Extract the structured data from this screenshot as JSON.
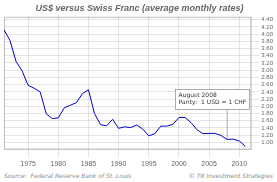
{
  "chart_data": {
    "type": "line",
    "title": "US$ versus Swiss Franc (average monthly rates)",
    "x": [
      1971,
      1972,
      1973,
      1974,
      1975,
      1976,
      1977,
      1978,
      1979,
      1980,
      1981,
      1982,
      1983,
      1984,
      1985,
      1986,
      1987,
      1988,
      1989,
      1990,
      1991,
      1992,
      1993,
      1994,
      1995,
      1996,
      1997,
      1998,
      1999,
      2000,
      2001,
      2002,
      2003,
      2004,
      2005,
      2006,
      2007,
      2008,
      2009,
      2010,
      2011
    ],
    "values": [
      4.12,
      3.82,
      3.24,
      2.98,
      2.58,
      2.5,
      2.4,
      1.79,
      1.66,
      1.68,
      1.96,
      2.03,
      2.1,
      2.35,
      2.46,
      1.8,
      1.49,
      1.46,
      1.64,
      1.39,
      1.43,
      1.41,
      1.48,
      1.37,
      1.18,
      1.24,
      1.45,
      1.45,
      1.5,
      1.69,
      1.69,
      1.55,
      1.35,
      1.24,
      1.25,
      1.25,
      1.19,
      1.08,
      1.09,
      1.04,
      0.89
    ],
    "color": "#0000cc",
    "xlim": [
      1971,
      2012
    ],
    "xticks": [
      1975,
      1980,
      1985,
      1990,
      1995,
      2000,
      2005,
      2010
    ],
    "ylim": [
      0.8,
      4.48
    ],
    "yticks": [
      {
        "value": 1.0,
        "label": "1.00"
      },
      {
        "value": 1.2,
        "label": "1.20"
      },
      {
        "value": 1.4,
        "label": "1.40"
      },
      {
        "value": 1.6,
        "label": "1.60"
      },
      {
        "value": 1.8,
        "label": "1.80"
      },
      {
        "value": 2.0,
        "label": "2.00"
      },
      {
        "value": 2.2,
        "label": "2.20"
      },
      {
        "value": 2.4,
        "label": "2.40"
      },
      {
        "value": 2.6,
        "label": "2.60"
      },
      {
        "value": 2.8,
        "label": "2.80"
      },
      {
        "value": 3.0,
        "label": "3.00"
      },
      {
        "value": 3.2,
        "label": "3.20"
      },
      {
        "value": 3.4,
        "label": "3.40"
      },
      {
        "value": 3.6,
        "label": "3.60"
      },
      {
        "value": 3.8,
        "label": "3.80"
      },
      {
        "value": 4.0,
        "label": "4.00"
      },
      {
        "value": 4.2,
        "label": "4.20"
      },
      {
        "value": 4.4,
        "label": "4.40"
      }
    ],
    "grid": true,
    "annotations": [
      {
        "text": "August 2008\nParity:  1 USD = 1 CHF",
        "x": 2008,
        "y": 1.08
      }
    ],
    "sources": [
      "Source:  Federal Reserve Bank of St. Louis",
      "© TR Investment Strategies"
    ]
  }
}
